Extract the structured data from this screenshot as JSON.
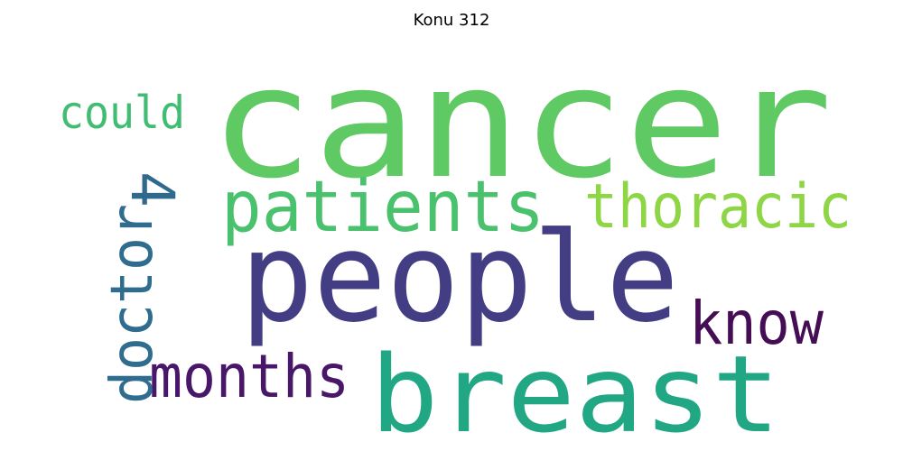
{
  "title": "Konu 312",
  "words": [
    {
      "text": "cancer",
      "color": "#5fc963",
      "rank": 1
    },
    {
      "text": "people",
      "color": "#433d84",
      "rank": 2
    },
    {
      "text": "breast",
      "color": "#22a784",
      "rank": 3
    },
    {
      "text": "patients",
      "color": "#4ac16d",
      "rank": 4
    },
    {
      "text": "thoracic",
      "color": "#8ed645",
      "rank": 5
    },
    {
      "text": "know",
      "color": "#450d54",
      "rank": 6
    },
    {
      "text": "months",
      "color": "#481769",
      "rank": 7
    },
    {
      "text": "doctor",
      "color": "#2f6c8e",
      "rank": 8
    },
    {
      "text": "4",
      "color": "#30698e",
      "rank": 9
    },
    {
      "text": "could",
      "color": "#40bd72",
      "rank": 10
    }
  ]
}
